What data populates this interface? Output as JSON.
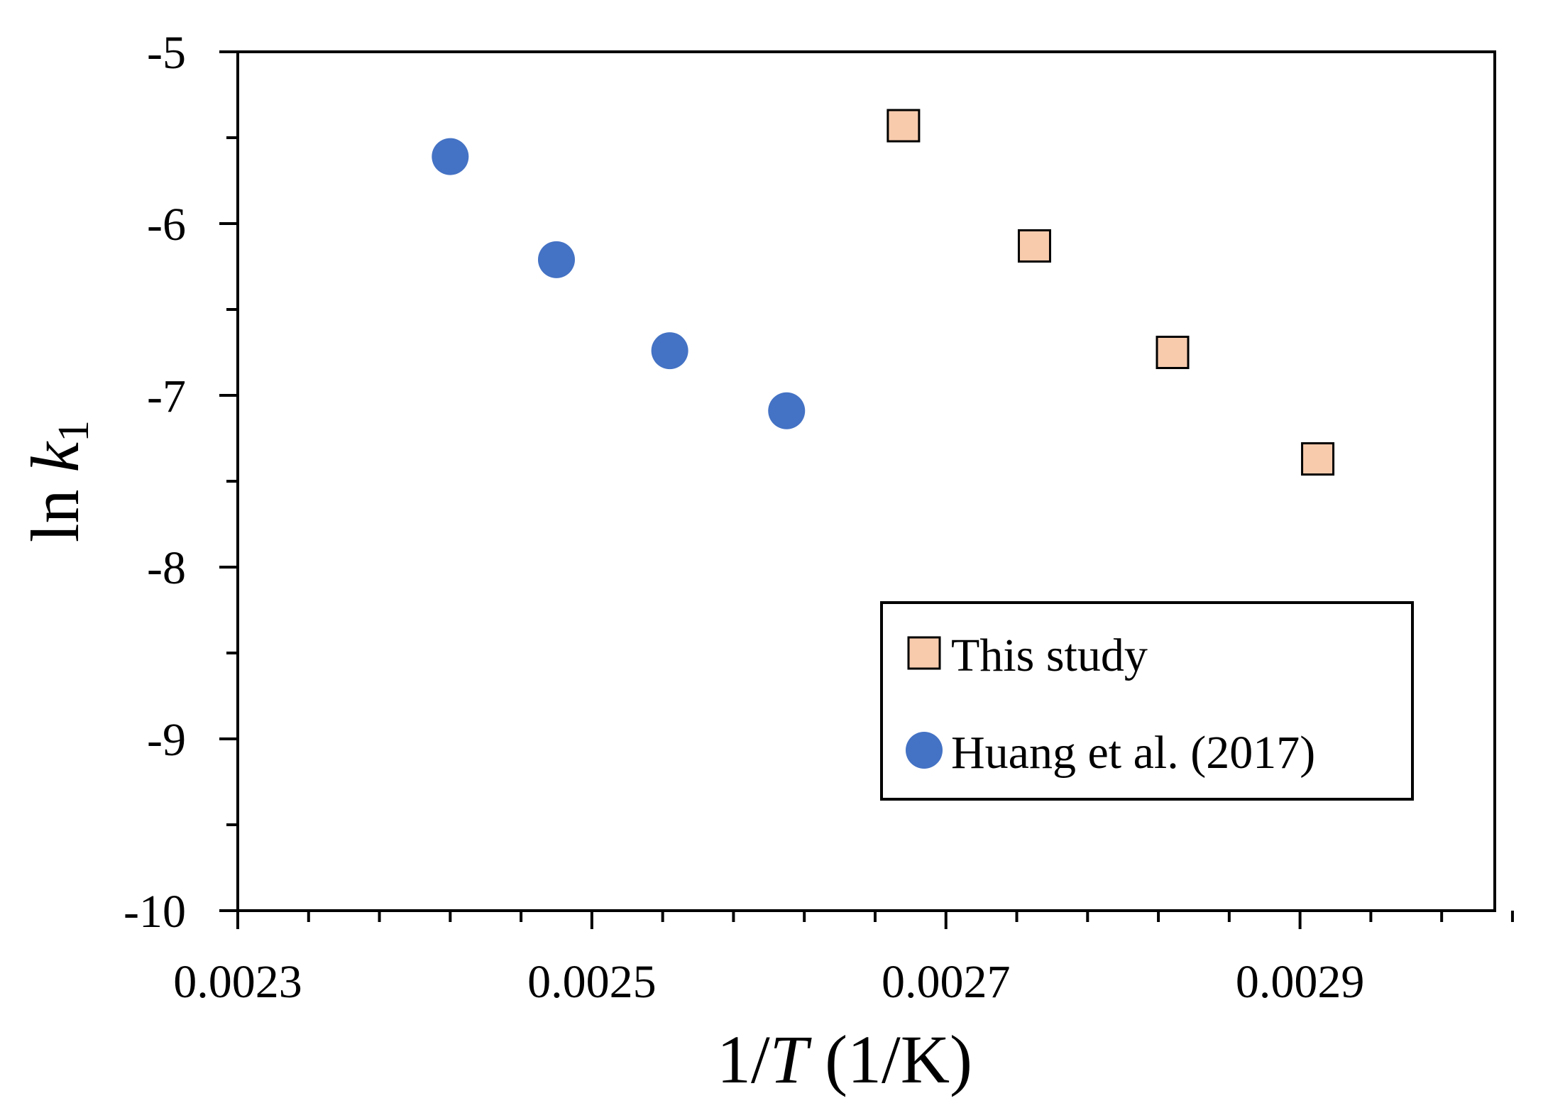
{
  "chart_data": {
    "type": "scatter",
    "title": "",
    "xlabel": {
      "prefix": "1/",
      "var": "T",
      "suffix": " (1/K)"
    },
    "ylabel": {
      "prefix": "ln ",
      "var": "k",
      "sub": "1"
    },
    "xlim": [
      0.0023,
      0.00301
    ],
    "ylim": [
      -10,
      -5
    ],
    "x_ticks": [
      0.0023,
      0.0025,
      0.0027,
      0.0029
    ],
    "x_tick_labels": [
      "0.0023",
      "0.0025",
      "0.0027",
      "0.0029"
    ],
    "x_minor_step": 4e-05,
    "y_ticks": [
      -5,
      -6,
      -7,
      -8,
      -9,
      -10
    ],
    "y_tick_labels": [
      "-5",
      "-6",
      "-7",
      "-8",
      "-9",
      "-10"
    ],
    "y_minor_step": 0.5,
    "grid": false,
    "legend_position": "bottom-right",
    "series": [
      {
        "name": "This study",
        "marker": "square",
        "color": "#F8CBAD",
        "edge_color": "#000000",
        "points": [
          {
            "x": 0.002676,
            "y": -5.43
          },
          {
            "x": 0.00275,
            "y": -6.13
          },
          {
            "x": 0.002828,
            "y": -6.75
          },
          {
            "x": 0.00291,
            "y": -7.37
          }
        ]
      },
      {
        "name": "Huang et al. (2017)",
        "marker": "circle",
        "color": "#4472C4",
        "edge_color": "#4472C4",
        "points": [
          {
            "x": 0.00242,
            "y": -5.61
          },
          {
            "x": 0.00248,
            "y": -6.21
          },
          {
            "x": 0.002544,
            "y": -6.74
          },
          {
            "x": 0.00261,
            "y": -7.09
          }
        ]
      }
    ]
  }
}
